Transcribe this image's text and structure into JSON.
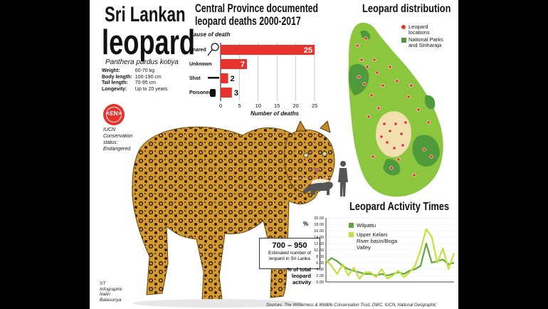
{
  "title_line1": "Sri Lankan",
  "title_line2": "leopard",
  "scientific_name": "Panthera pardus kotiya",
  "facts": [
    {
      "label": "Weight:",
      "value": "60-70 kg"
    },
    {
      "label": "Body length:",
      "value": "100-190 cm"
    },
    {
      "label": "Tail length:",
      "value": "70-95 cm"
    },
    {
      "label": "Longevity:",
      "value": "Up to 20 years"
    }
  ],
  "iucn": {
    "badge": "<EN>",
    "status_lines": [
      "IUCN",
      "Conservation",
      "status:",
      "Endangered"
    ]
  },
  "population": {
    "range": "700 – 950",
    "caption_lines": [
      "Estimated number of",
      "leopard in Sri Lanka"
    ]
  },
  "credit_lines": [
    "ST",
    "Infographic",
    "Nalin",
    "Balasuriya"
  ],
  "sources": "Sources: The Wilderness & Wildlife Conservation Trust, DWC, IUCN, National Geographic",
  "colors": {
    "bar_red": "#e8322b",
    "map_green": "#8cc63f",
    "park_green": "#4f9a3a",
    "wilpattu_line": "#5ea640",
    "kelani_line": "#c7df3b",
    "dot_red": "#e8322b"
  },
  "chart_data": [
    {
      "type": "bar",
      "orientation": "horizontal",
      "title_line1": "Central Province documented",
      "title_line2": "leopard deaths 2000-2017",
      "category_axis_label": "Cause of death",
      "categories": [
        "Snared",
        "Unknown",
        "Shot",
        "Poisoned"
      ],
      "values": [
        25,
        7,
        2,
        3
      ],
      "xlabel": "Number of deaths",
      "xlim": [
        0,
        25
      ],
      "xticks": [
        "0",
        "5",
        "10",
        "15",
        "20",
        "25"
      ]
    },
    {
      "type": "map",
      "title": "Leopard distribution",
      "legend": [
        {
          "label_lines": [
            "Leopard",
            "locations"
          ],
          "icon": "red-dot"
        },
        {
          "label_lines": [
            "National Parks",
            "and Sinharaja"
          ],
          "icon": "green-square"
        }
      ]
    },
    {
      "type": "line",
      "title": "Leopard Activity Times",
      "ylabel_top": "%",
      "ylabel_bottom_lines": [
        "% of total",
        "leopard",
        "activity"
      ],
      "ylim": [
        0,
        20
      ],
      "yticks": [
        "0.00",
        "2.00",
        "4.00",
        "6.00",
        "8.00",
        "10.00",
        "12.00",
        "14.00",
        "16.00",
        "18.00",
        "20.00"
      ],
      "legend": [
        {
          "label_lines": [
            "Wilpattu"
          ]
        },
        {
          "label_lines": [
            "Upper Kelani",
            "River basin/Boga",
            "Valley"
          ]
        }
      ],
      "series": [
        {
          "name": "Wilpattu",
          "values": [
            6,
            7.5,
            6.5,
            5,
            4,
            3.5,
            3,
            2.5,
            2.5,
            2,
            2.5,
            2,
            2.5,
            3,
            2.5,
            3.5,
            4,
            5,
            12,
            6,
            6.5,
            7,
            5.5,
            6
          ]
        },
        {
          "name": "Upper Kelani River basin/Boga Valley",
          "values": [
            7,
            5,
            2.5,
            5.5,
            2,
            4.5,
            1,
            3,
            3,
            1.5,
            4,
            1,
            2,
            3.5,
            1.5,
            3,
            5,
            10,
            16.5,
            14,
            6,
            10.5,
            4,
            9
          ]
        }
      ]
    }
  ]
}
